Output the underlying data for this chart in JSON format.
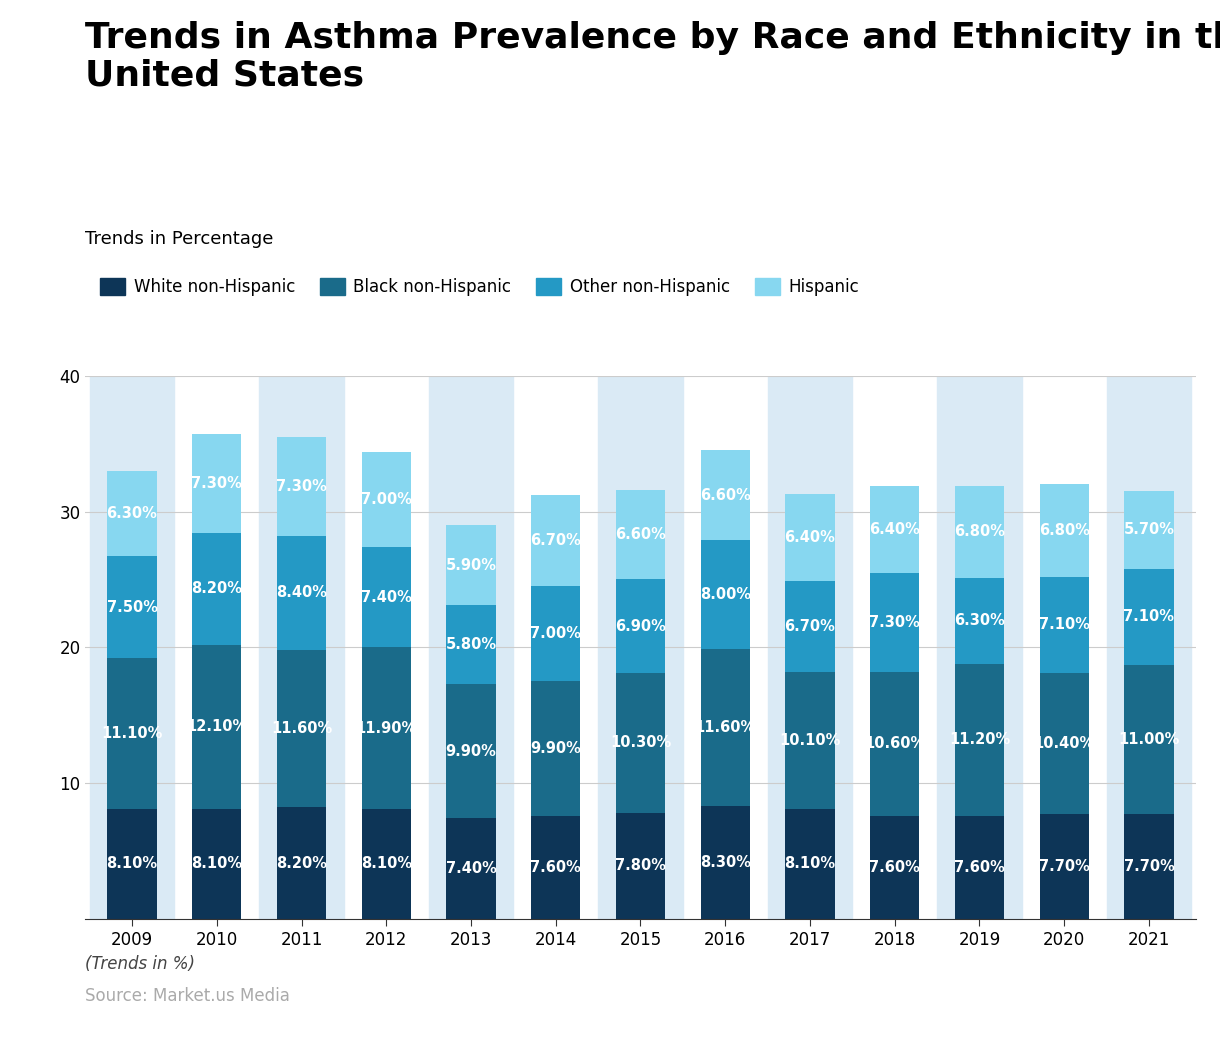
{
  "title": "Trends in Asthma Prevalence by Race and Ethnicity in the\nUnited States",
  "subtitle": "Trends in Percentage",
  "footer_line1": "(Trends in %)",
  "footer_line2": "Source: Market.us Media",
  "years": [
    2009,
    2010,
    2011,
    2012,
    2013,
    2014,
    2015,
    2016,
    2017,
    2018,
    2019,
    2020,
    2021
  ],
  "series": {
    "White non-Hispanic": [
      8.1,
      8.1,
      8.2,
      8.1,
      7.4,
      7.6,
      7.8,
      8.3,
      8.1,
      7.6,
      7.6,
      7.7,
      7.7
    ],
    "Black non-Hispanic": [
      11.1,
      12.1,
      11.6,
      11.9,
      9.9,
      9.9,
      10.3,
      11.6,
      10.1,
      10.6,
      11.2,
      10.4,
      11.0
    ],
    "Other non-Hispanic": [
      7.5,
      8.2,
      8.4,
      7.4,
      5.8,
      7.0,
      6.9,
      8.0,
      6.7,
      7.3,
      6.3,
      7.1,
      7.1
    ],
    "Hispanic": [
      6.3,
      7.3,
      7.3,
      7.0,
      5.9,
      6.7,
      6.6,
      6.6,
      6.4,
      6.4,
      6.8,
      6.8,
      5.7
    ]
  },
  "colors": {
    "White non-Hispanic": "#0d3557",
    "Black non-Hispanic": "#1a6b8a",
    "Other non-Hispanic": "#2499c5",
    "Hispanic": "#87d7f0"
  },
  "background_strip_color": "#daeaf5",
  "ylim": [
    0,
    40
  ],
  "yticks": [
    10,
    20,
    30,
    40
  ],
  "title_fontsize": 26,
  "subtitle_fontsize": 13,
  "legend_fontsize": 12,
  "tick_fontsize": 12,
  "bar_label_fontsize": 10.5,
  "footer_fontsize": 12
}
